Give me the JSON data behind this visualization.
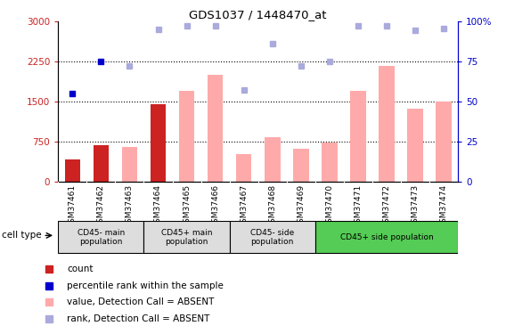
{
  "title": "GDS1037 / 1448470_at",
  "samples": [
    "GSM37461",
    "GSM37462",
    "GSM37463",
    "GSM37464",
    "GSM37465",
    "GSM37466",
    "GSM37467",
    "GSM37468",
    "GSM37469",
    "GSM37470",
    "GSM37471",
    "GSM37472",
    "GSM37473",
    "GSM37474"
  ],
  "bar_values": [
    430,
    690,
    650,
    1450,
    1700,
    2000,
    520,
    840,
    620,
    745,
    1700,
    2180,
    1380,
    1510
  ],
  "bar_colors": [
    "#cc2222",
    "#cc2222",
    "#ffaaaa",
    "#cc2222",
    "#ffaaaa",
    "#ffaaaa",
    "#ffaaaa",
    "#ffaaaa",
    "#ffaaaa",
    "#ffaaaa",
    "#ffaaaa",
    "#ffaaaa",
    "#ffaaaa",
    "#ffaaaa"
  ],
  "rank_dots_left_scale": [
    1650,
    2250,
    2180,
    2850,
    2920,
    2930,
    1720,
    2590,
    2180,
    2260,
    2930,
    2930,
    2840,
    2880
  ],
  "rank_dot_colors": [
    "#0000cc",
    "#0000cc",
    "#aaaadd",
    "#aaaadd",
    "#aaaadd",
    "#aaaadd",
    "#aaaadd",
    "#aaaadd",
    "#aaaadd",
    "#aaaadd",
    "#aaaadd",
    "#aaaadd",
    "#aaaadd",
    "#aaaadd"
  ],
  "ylim_left": [
    0,
    3000
  ],
  "ylim_right": [
    0,
    100
  ],
  "yticks_left": [
    0,
    750,
    1500,
    2250,
    3000
  ],
  "yticks_right": [
    0,
    25,
    50,
    75,
    100
  ],
  "ytick_labels_left": [
    "0",
    "750",
    "1500",
    "2250",
    "3000"
  ],
  "ytick_labels_right": [
    "0",
    "25",
    "50",
    "75",
    "100%"
  ],
  "hlines": [
    750,
    1500,
    2250
  ],
  "cell_type_groups": [
    {
      "label": "CD45- main\npopulation",
      "start": 0,
      "end": 3,
      "color": "#dddddd"
    },
    {
      "label": "CD45+ main\npopulation",
      "start": 3,
      "end": 6,
      "color": "#dddddd"
    },
    {
      "label": "CD45- side\npopulation",
      "start": 6,
      "end": 9,
      "color": "#dddddd"
    },
    {
      "label": "CD45+ side population",
      "start": 9,
      "end": 14,
      "color": "#55cc55"
    }
  ],
  "legend_items": [
    {
      "label": "count",
      "color": "#cc2222"
    },
    {
      "label": "percentile rank within the sample",
      "color": "#0000cc"
    },
    {
      "label": "value, Detection Call = ABSENT",
      "color": "#ffaaaa"
    },
    {
      "label": "rank, Detection Call = ABSENT",
      "color": "#aaaadd"
    }
  ],
  "left_axis_color": "#cc2222",
  "right_axis_color": "#0000cc",
  "cell_type_label": "cell type",
  "xtick_bg_color": "#cccccc",
  "background_color": "#ffffff",
  "plot_bg_color": "#ffffff"
}
